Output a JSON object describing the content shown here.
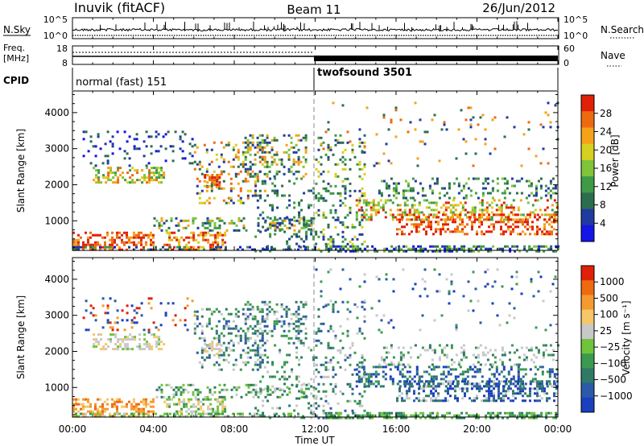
{
  "header": {
    "station": "Inuvik (fitACF)",
    "beam": "Beam 11",
    "date": "26/Jun/2012"
  },
  "status_panels": {
    "nsky_label": "N.Sky",
    "nsearch_label": "N.Search",
    "freq_label_line1": "Freq.",
    "freq_label_line2": "[MHz]",
    "nave_label": "Nave",
    "cpid_label": "CPID",
    "nsky_ticks": [
      "10^5",
      "10^0"
    ],
    "nsearch_ticks": [
      "10^5",
      "10^0"
    ],
    "freq_ticks": [
      "18",
      "8"
    ],
    "nave_ticks": [
      "60",
      "0"
    ],
    "cpid_segments": [
      {
        "label": "normal (fast) 151",
        "start_hour": 0,
        "end_hour": 12
      },
      {
        "label": "twofsound 3501",
        "start_hour": 12,
        "end_hour": 24
      }
    ]
  },
  "x_axis": {
    "label": "Time UT",
    "tick_labels": [
      "00:00",
      "04:00",
      "08:00",
      "12:00",
      "16:00",
      "20:00",
      "00:00"
    ],
    "range_hours": [
      0,
      24
    ]
  },
  "chart_data": [
    {
      "type": "heatmap",
      "name": "power",
      "ylabel": "Slant Range [km]",
      "yticks": [
        "1000",
        "2000",
        "3000",
        "4000"
      ],
      "ylim": [
        180,
        4600
      ],
      "colorbar_label": "Power [dB]",
      "colorbar_ticks": [
        "4",
        "8",
        "12",
        "16",
        "20",
        "24",
        "28"
      ],
      "colorbar_range": [
        0,
        32
      ],
      "colors": [
        "#1515e8",
        "#203aa0",
        "#2b6e4e",
        "#3f9a48",
        "#7fc43a",
        "#d6d020",
        "#f5a21a",
        "#ee6a10",
        "#e02008"
      ]
    },
    {
      "type": "heatmap",
      "name": "velocity",
      "ylabel": "Slant Range [km]",
      "yticks": [
        "1000",
        "2000",
        "3000",
        "4000"
      ],
      "ylim": [
        180,
        4600
      ],
      "colorbar_label": "Velocity [m s⁻¹]",
      "colorbar_ticks": [
        "1000",
        "500",
        "100",
        "25",
        "−25",
        "−100",
        "−500",
        "−1000"
      ],
      "colors": [
        "#1a3fbf",
        "#2c5aa8",
        "#2f7a66",
        "#3b9a50",
        "#6fc43a",
        "#c8c8c8",
        "#f5c76a",
        "#f59a30",
        "#ee6a10",
        "#e02008"
      ]
    }
  ]
}
